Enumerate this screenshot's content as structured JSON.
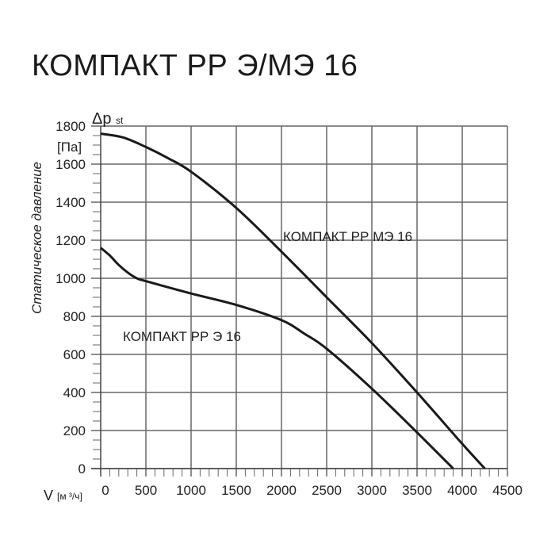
{
  "title": "КОМПАКТ РР Э/МЭ 16",
  "chart_data": {
    "type": "line",
    "title": "КОМПАКТ РР Э/МЭ 16",
    "xlabel": "V",
    "xunit": "[м ³/ч]",
    "ylabel": "Статическое давление",
    "ysymbol": "Δp",
    "ysub": "st",
    "yunit": "[Па]",
    "xlim": [
      0,
      4500
    ],
    "ylim": [
      0,
      1800
    ],
    "xticks": [
      0,
      500,
      1000,
      1500,
      2000,
      2500,
      3000,
      3500,
      4000,
      4500
    ],
    "yticks": [
      0,
      200,
      400,
      600,
      800,
      1000,
      1200,
      1400,
      1600,
      1800
    ],
    "grid": true,
    "series": [
      {
        "name": "КОМПАКТ РР МЭ 16",
        "x": [
          0,
          250,
          500,
          750,
          1000,
          1500,
          2000,
          2500,
          3000,
          3500,
          4000,
          4250
        ],
        "y": [
          1760,
          1740,
          1690,
          1630,
          1560,
          1370,
          1140,
          900,
          660,
          400,
          130,
          0
        ]
      },
      {
        "name": "КОМПАКТ РР Э 16",
        "x": [
          0,
          100,
          200,
          300,
          400,
          500,
          1000,
          1500,
          2000,
          2250,
          2500,
          3000,
          3500,
          3900
        ],
        "y": [
          1160,
          1120,
          1070,
          1030,
          1000,
          985,
          920,
          860,
          780,
          710,
          630,
          420,
          190,
          0
        ]
      }
    ],
    "color": "#1a1a1a"
  }
}
